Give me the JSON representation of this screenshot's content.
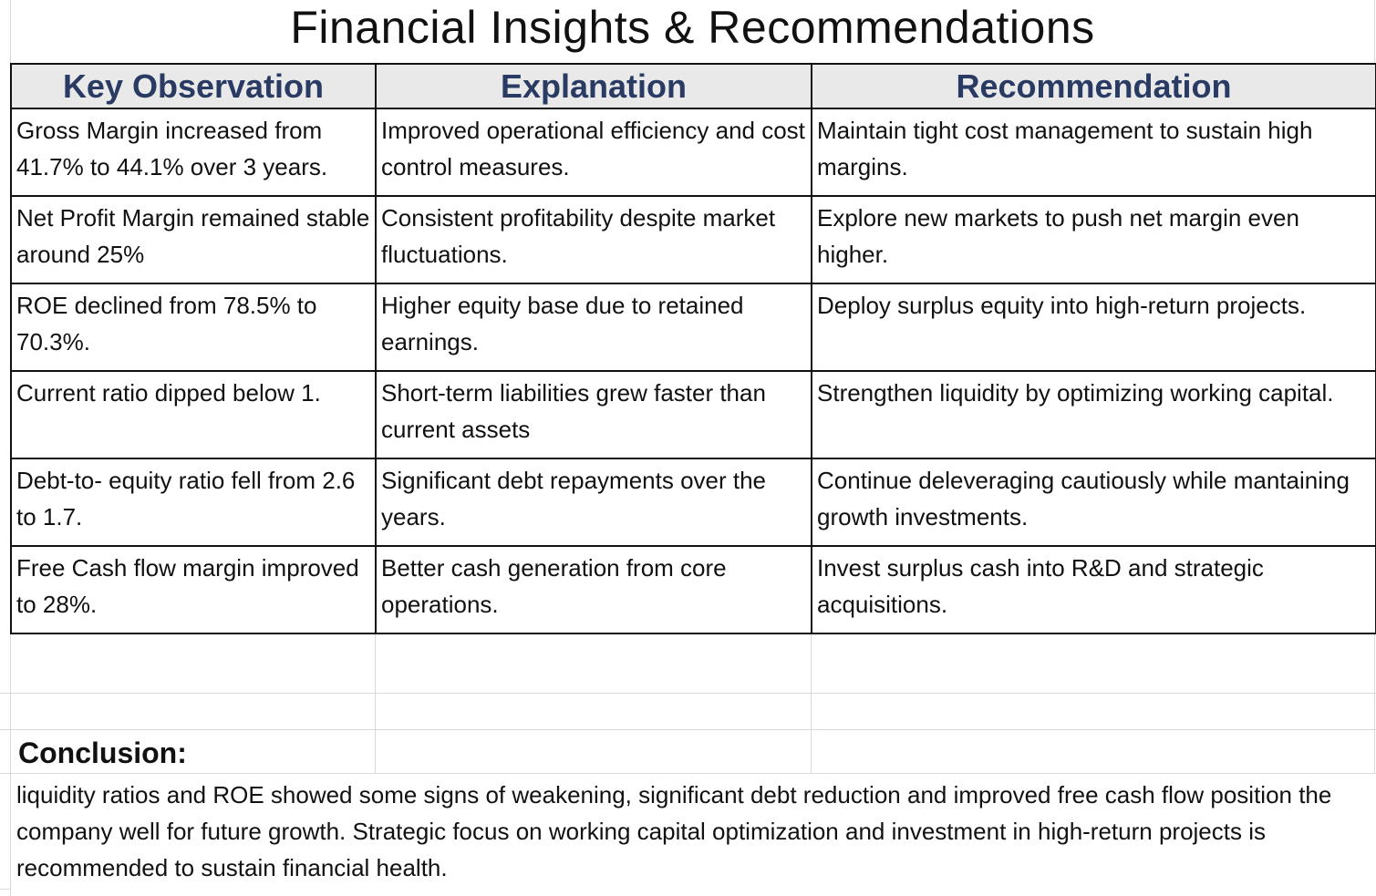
{
  "title": "Financial Insights & Recommendations",
  "headers": [
    "Key Observation",
    "Explanation",
    "Recommendation"
  ],
  "rows": [
    {
      "observation": "Gross Margin increased from 41.7% to 44.1% over 3 years.",
      "explanation": "Improved operational efficiency and cost control measures.",
      "recommendation": "Maintain tight cost management to sustain high margins."
    },
    {
      "observation": "Net Profit Margin remained stable around 25%",
      "explanation": "Consistent profitability despite market fluctuations.",
      "recommendation": "Explore new markets to push net margin even higher."
    },
    {
      "observation": "ROE declined from 78.5% to 70.3%.",
      "explanation": "Higher equity base due to retained earnings.",
      "recommendation": "Deploy surplus equity into high-return projects."
    },
    {
      "observation": "Current ratio dipped below 1.",
      "explanation": "Short-term liabilities grew faster than current assets",
      "recommendation": "Strengthen liquidity by optimizing working capital."
    },
    {
      "observation": "Debt-to- equity ratio fell from 2.6 to 1.7.",
      "explanation": "Significant debt repayments over the years.",
      "recommendation": "Continue deleveraging cautiously while mantaining growth investments."
    },
    {
      "observation": "Free Cash flow margin improved to 28%.",
      "explanation": "Better cash generation from core operations.",
      "recommendation": "Invest surplus cash into R&D and strategic acquisitions."
    }
  ],
  "conclusion": {
    "label": "Conclusion:",
    "text": "liquidity ratios and ROE showed some signs of weakening, significant debt reduction and improved free cash flow position the company well for future growth. Strategic focus on working capital optimization and investment in high-return projects is recommended to sustain financial health."
  }
}
